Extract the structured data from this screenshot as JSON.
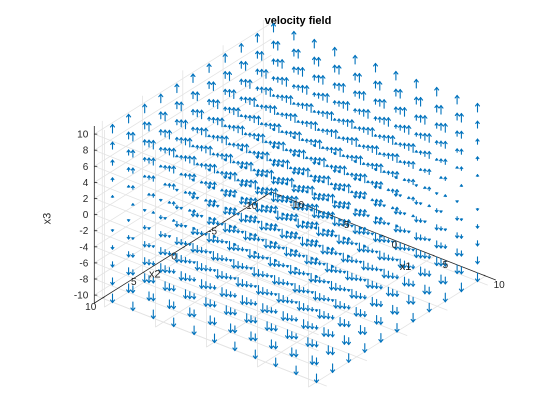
{
  "chart_data": {
    "type": "quiver3",
    "title": "velocity field",
    "xlabel": "x1",
    "ylabel": "x2",
    "zlabel": "x3",
    "xlim": [
      -10,
      10
    ],
    "ylim": [
      -10,
      10
    ],
    "zlim": [
      -11,
      11
    ],
    "x_ticks": [
      -10,
      -5,
      0,
      5,
      10
    ],
    "y_ticks": [
      -10,
      -5,
      0,
      5,
      10
    ],
    "z_ticks": [
      -10,
      -8,
      -6,
      -4,
      -2,
      0,
      2,
      4,
      6,
      8,
      10
    ],
    "grid": true,
    "view": {
      "azimuth_deg": -37.5,
      "elevation_deg": 30
    },
    "arrow_color": "#0072bd",
    "grid_points": {
      "x1": [
        -10,
        -8,
        -6,
        -4,
        -2,
        0,
        2,
        4,
        6,
        8,
        10
      ],
      "x2": [
        -10,
        -8,
        -6,
        -4,
        -2,
        0,
        2,
        4,
        6,
        8,
        10
      ],
      "x3": [
        -10,
        -8,
        -6,
        -4,
        -2,
        0,
        2,
        4,
        6,
        8,
        10
      ]
    },
    "velocity_components": {
      "u1": 0,
      "u2": 0,
      "u3": "x3"
    }
  }
}
